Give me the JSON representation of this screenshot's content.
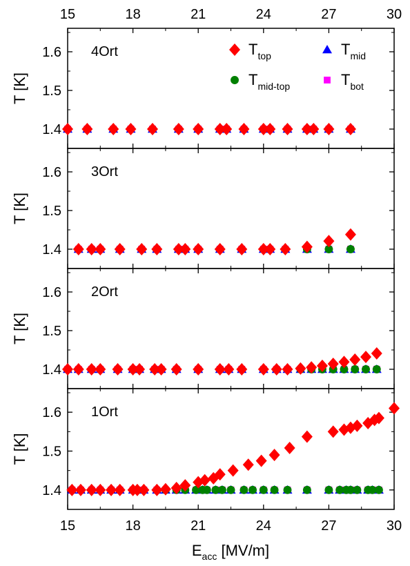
{
  "chart_data": {
    "type": "scatter",
    "xlabel": "E",
    "xlabel_sub": "acc",
    "xlabel_unit": " [MV/m]",
    "ylabel": "T [K]",
    "xlim": [
      15,
      30
    ],
    "ylim": [
      1.35,
      1.65
    ],
    "xticks": [
      "15",
      "18",
      "21",
      "24",
      "27",
      "30"
    ],
    "yticks": [
      "1.4",
      "1.5",
      "1.6"
    ],
    "grid": false,
    "legend": {
      "placement": "top-right of first panel",
      "entries": [
        {
          "series": "top",
          "main": "T",
          "sub": "top",
          "marker": "diamond",
          "color": "#ff0000"
        },
        {
          "series": "mid",
          "main": "T",
          "sub": "mid",
          "marker": "triangle",
          "color": "#0000ff"
        },
        {
          "series": "midtop",
          "main": "T",
          "sub": "mid-top",
          "marker": "circle",
          "color": "#008000"
        },
        {
          "series": "bot",
          "main": "T",
          "sub": "bot",
          "marker": "square",
          "color": "#ff00ff"
        }
      ]
    },
    "panels": [
      {
        "label": "4Ort",
        "series": [
          {
            "name": "T_bot",
            "marker": "square",
            "color": "#ff00ff",
            "x": [
              15,
              15.9,
              17.1,
              17.9,
              18.9,
              20.1,
              21,
              22,
              22.3,
              23.1,
              24,
              24.3,
              25.1,
              26,
              26.3,
              27,
              28
            ],
            "y": [
              1.4,
              1.4,
              1.4,
              1.4,
              1.4,
              1.4,
              1.4,
              1.4,
              1.4,
              1.4,
              1.4,
              1.4,
              1.4,
              1.4,
              1.4,
              1.4,
              1.4
            ]
          },
          {
            "name": "T_mid",
            "marker": "triangle",
            "color": "#0000ff",
            "x": [
              15,
              15.9,
              17.1,
              17.9,
              18.9,
              20.1,
              21,
              22,
              22.3,
              23.1,
              24,
              24.3,
              25.1,
              26,
              26.3,
              27,
              28
            ],
            "y": [
              1.4,
              1.4,
              1.4,
              1.4,
              1.4,
              1.4,
              1.4,
              1.4,
              1.4,
              1.4,
              1.4,
              1.4,
              1.4,
              1.4,
              1.4,
              1.4,
              1.4
            ]
          },
          {
            "name": "T_mid-top",
            "marker": "circle",
            "color": "#008000",
            "x": [
              15,
              15.9,
              17.1,
              17.9,
              18.9,
              20.1,
              21,
              22,
              22.3,
              23.1,
              24,
              24.3,
              25.1,
              26,
              26.3,
              27,
              28
            ],
            "y": [
              1.4,
              1.4,
              1.4,
              1.4,
              1.4,
              1.4,
              1.4,
              1.4,
              1.4,
              1.4,
              1.4,
              1.4,
              1.4,
              1.4,
              1.4,
              1.4,
              1.4
            ]
          },
          {
            "name": "T_top",
            "marker": "diamond",
            "color": "#ff0000",
            "x": [
              15,
              15.9,
              17.1,
              17.9,
              18.9,
              20.1,
              21,
              22,
              22.3,
              23.1,
              24,
              24.3,
              25.1,
              26,
              26.3,
              27,
              28
            ],
            "y": [
              1.4,
              1.4,
              1.4,
              1.4,
              1.4,
              1.4,
              1.4,
              1.4,
              1.4,
              1.4,
              1.4,
              1.4,
              1.4,
              1.4,
              1.4,
              1.4,
              1.4
            ]
          }
        ]
      },
      {
        "label": "3Ort",
        "series": [
          {
            "name": "T_bot",
            "marker": "square",
            "color": "#ff00ff",
            "x": [
              15.5,
              16.1,
              16.5,
              17.4,
              18.4,
              19.1,
              20.1,
              20.4,
              21,
              22,
              23,
              24,
              24.3,
              25,
              26,
              27,
              28
            ],
            "y": [
              1.4,
              1.4,
              1.4,
              1.4,
              1.4,
              1.4,
              1.4,
              1.4,
              1.4,
              1.4,
              1.4,
              1.4,
              1.4,
              1.4,
              1.4,
              1.4,
              1.4
            ]
          },
          {
            "name": "T_mid",
            "marker": "triangle",
            "color": "#0000ff",
            "x": [
              15.5,
              16.1,
              16.5,
              17.4,
              18.4,
              19.1,
              20.1,
              20.4,
              21,
              22,
              23,
              24,
              24.3,
              25,
              26,
              27,
              28
            ],
            "y": [
              1.4,
              1.4,
              1.4,
              1.4,
              1.4,
              1.4,
              1.4,
              1.4,
              1.4,
              1.4,
              1.4,
              1.4,
              1.4,
              1.4,
              1.4,
              1.4,
              1.4
            ]
          },
          {
            "name": "T_mid-top",
            "marker": "circle",
            "color": "#008000",
            "x": [
              15.5,
              16.1,
              16.5,
              17.4,
              18.4,
              19.1,
              20.1,
              20.4,
              21,
              22,
              23,
              24,
              24.3,
              25,
              26,
              27,
              28
            ],
            "y": [
              1.4,
              1.4,
              1.4,
              1.4,
              1.4,
              1.4,
              1.4,
              1.4,
              1.4,
              1.4,
              1.4,
              1.4,
              1.4,
              1.4,
              1.4,
              1.4,
              1.4
            ]
          },
          {
            "name": "T_top",
            "marker": "diamond",
            "color": "#ff0000",
            "x": [
              15.5,
              16.1,
              16.5,
              17.4,
              18.4,
              19.1,
              20.1,
              20.4,
              21,
              22,
              23,
              24,
              24.3,
              25,
              26,
              27,
              28
            ],
            "y": [
              1.4,
              1.4,
              1.4,
              1.4,
              1.4,
              1.4,
              1.4,
              1.4,
              1.4,
              1.4,
              1.4,
              1.4,
              1.4,
              1.4,
              1.406,
              1.421,
              1.438
            ]
          }
        ]
      },
      {
        "label": "2Ort",
        "series": [
          {
            "name": "T_bot",
            "marker": "square",
            "color": "#ff00ff",
            "x": [
              15,
              15.5,
              16.1,
              16.5,
              17.3,
              18,
              18.3,
              19,
              19.3,
              20,
              21,
              22,
              22.4,
              23,
              24,
              24.6,
              25.1,
              25.7,
              26.2,
              26.7,
              27.2,
              27.7,
              28.2,
              28.7,
              29.2
            ],
            "y": [
              1.4,
              1.4,
              1.4,
              1.4,
              1.4,
              1.4,
              1.4,
              1.4,
              1.4,
              1.4,
              1.4,
              1.4,
              1.4,
              1.4,
              1.4,
              1.4,
              1.4,
              1.4,
              1.4,
              1.4,
              1.4,
              1.4,
              1.4,
              1.4,
              1.4
            ]
          },
          {
            "name": "T_mid",
            "marker": "triangle",
            "color": "#0000ff",
            "x": [
              15,
              15.5,
              16.1,
              16.5,
              17.3,
              18,
              18.3,
              19,
              19.3,
              20,
              21,
              22,
              22.4,
              23,
              24,
              24.6,
              25.1,
              25.7,
              26.2,
              26.7,
              27.2,
              27.7,
              28.2,
              28.7,
              29.2
            ],
            "y": [
              1.4,
              1.4,
              1.4,
              1.4,
              1.4,
              1.4,
              1.4,
              1.4,
              1.4,
              1.4,
              1.4,
              1.4,
              1.4,
              1.4,
              1.4,
              1.4,
              1.4,
              1.4,
              1.4,
              1.4,
              1.4,
              1.4,
              1.4,
              1.4,
              1.4
            ]
          },
          {
            "name": "T_mid-top",
            "marker": "circle",
            "color": "#008000",
            "x": [
              15,
              15.5,
              16.1,
              16.5,
              17.3,
              18,
              18.3,
              19,
              19.3,
              20,
              21,
              22,
              22.4,
              23,
              24,
              24.6,
              25.1,
              25.7,
              26.2,
              26.7,
              27.2,
              27.7,
              28.2,
              28.7,
              29.2
            ],
            "y": [
              1.4,
              1.4,
              1.4,
              1.4,
              1.4,
              1.4,
              1.4,
              1.4,
              1.4,
              1.4,
              1.4,
              1.4,
              1.4,
              1.4,
              1.4,
              1.4,
              1.4,
              1.4,
              1.4,
              1.4,
              1.4,
              1.4,
              1.4,
              1.4,
              1.4
            ]
          },
          {
            "name": "T_top",
            "marker": "diamond",
            "color": "#ff0000",
            "x": [
              15,
              15.5,
              16.1,
              16.5,
              17.3,
              18,
              18.3,
              19,
              19.3,
              20,
              21,
              22,
              22.4,
              23,
              24,
              24.6,
              25.1,
              25.7,
              26.2,
              26.7,
              27.2,
              27.7,
              28.2,
              28.7,
              29.2
            ],
            "y": [
              1.4,
              1.4,
              1.4,
              1.4,
              1.4,
              1.4,
              1.4,
              1.4,
              1.4,
              1.4,
              1.4,
              1.4,
              1.4,
              1.4,
              1.4,
              1.4,
              1.4,
              1.402,
              1.405,
              1.409,
              1.414,
              1.419,
              1.425,
              1.432,
              1.441
            ]
          }
        ]
      },
      {
        "label": "1Ort",
        "series": [
          {
            "name": "T_bot",
            "marker": "square",
            "color": "#ff00ff",
            "x": [
              15.2,
              15.6,
              16.1,
              16.5,
              17,
              17.4,
              18,
              18.2,
              18.5,
              19.1,
              19.5,
              20,
              20.4,
              20.9,
              21.2,
              21.4,
              21.8,
              22.1,
              22.5,
              23.1,
              23.5,
              24,
              24.5,
              25.1,
              26,
              27,
              27.5,
              27.8,
              28,
              28.3,
              28.8,
              29,
              29.3
            ],
            "y": [
              1.4,
              1.4,
              1.4,
              1.4,
              1.4,
              1.4,
              1.4,
              1.4,
              1.4,
              1.4,
              1.4,
              1.4,
              1.4,
              1.4,
              1.4,
              1.4,
              1.4,
              1.4,
              1.4,
              1.4,
              1.4,
              1.4,
              1.4,
              1.4,
              1.4,
              1.4,
              1.4,
              1.4,
              1.4,
              1.4,
              1.4,
              1.4,
              1.4
            ]
          },
          {
            "name": "T_mid",
            "marker": "triangle",
            "color": "#0000ff",
            "x": [
              15.2,
              15.6,
              16.1,
              16.5,
              17,
              17.4,
              18,
              18.2,
              18.5,
              19.1,
              19.5,
              20,
              20.4,
              20.9,
              21.2,
              21.4,
              21.8,
              22.1,
              22.5,
              23.1,
              23.5,
              24,
              24.5,
              25.1,
              26,
              27,
              27.5,
              27.8,
              28,
              28.3,
              28.8,
              29,
              29.3
            ],
            "y": [
              1.4,
              1.4,
              1.4,
              1.4,
              1.4,
              1.4,
              1.4,
              1.4,
              1.4,
              1.4,
              1.4,
              1.4,
              1.4,
              1.4,
              1.4,
              1.4,
              1.4,
              1.4,
              1.4,
              1.4,
              1.4,
              1.4,
              1.4,
              1.4,
              1.4,
              1.4,
              1.4,
              1.4,
              1.4,
              1.4,
              1.4,
              1.4,
              1.4
            ]
          },
          {
            "name": "T_mid-top",
            "marker": "circle",
            "color": "#008000",
            "x": [
              15.2,
              15.6,
              16.1,
              16.5,
              17,
              17.4,
              18,
              18.2,
              18.5,
              19.1,
              19.5,
              20,
              20.4,
              20.9,
              21.2,
              21.4,
              21.8,
              22.1,
              22.5,
              23.1,
              23.5,
              24,
              24.5,
              25.1,
              26,
              27,
              27.5,
              27.8,
              28,
              28.3,
              28.8,
              29,
              29.3
            ],
            "y": [
              1.4,
              1.4,
              1.4,
              1.4,
              1.4,
              1.4,
              1.4,
              1.4,
              1.4,
              1.4,
              1.4,
              1.4,
              1.4,
              1.4,
              1.4,
              1.4,
              1.4,
              1.4,
              1.4,
              1.4,
              1.4,
              1.4,
              1.4,
              1.4,
              1.4,
              1.4,
              1.4,
              1.4,
              1.4,
              1.4,
              1.4,
              1.4,
              1.4
            ]
          },
          {
            "name": "T_top",
            "marker": "diamond",
            "color": "#ff0000",
            "x": [
              15.2,
              15.6,
              16.1,
              16.5,
              17,
              17.4,
              18,
              18.2,
              18.5,
              19.1,
              19.5,
              20,
              20.4,
              21,
              21.3,
              21.7,
              22,
              22.6,
              23.3,
              23.9,
              24.5,
              25.2,
              26,
              27.2,
              27.7,
              28,
              28.3,
              28.8,
              29.1,
              29.3,
              30
            ],
            "y": [
              1.4,
              1.4,
              1.4,
              1.4,
              1.4,
              1.4,
              1.4,
              1.4,
              1.4,
              1.4,
              1.402,
              1.405,
              1.412,
              1.42,
              1.425,
              1.43,
              1.44,
              1.45,
              1.465,
              1.475,
              1.49,
              1.508,
              1.537,
              1.55,
              1.555,
              1.56,
              1.565,
              1.572,
              1.58,
              1.585,
              1.61
            ]
          }
        ]
      }
    ]
  }
}
